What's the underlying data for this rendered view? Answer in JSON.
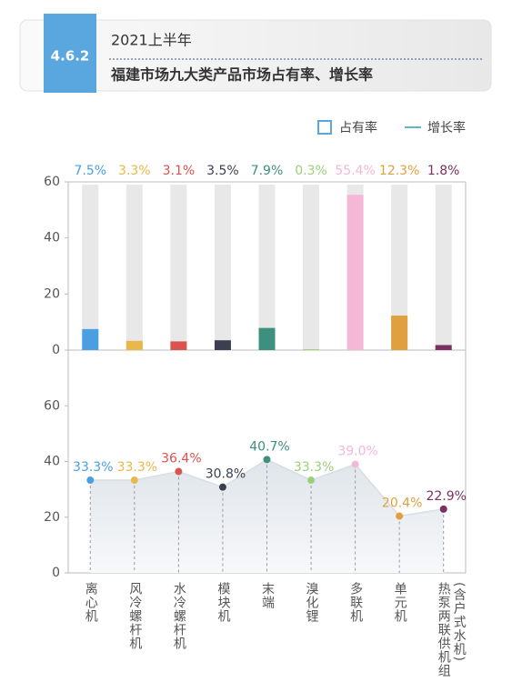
{
  "header": {
    "section": "4.6.2",
    "title": "2021上半年",
    "subtitle": "福建市场九大类产品市场占有率、增长率"
  },
  "chart_data": [
    {
      "type": "bar",
      "series": [
        {
          "name": "占有率",
          "color": "#5aa7e0",
          "values": [
            7.5,
            3.3,
            3.1,
            3.5,
            7.9,
            0.3,
            55.4,
            12.3,
            1.8
          ],
          "value_labels": [
            "7.5%",
            "3.3%",
            "3.1%",
            "3.5%",
            "7.9%",
            "0.3%",
            "55.4%",
            "12.3%",
            "1.8%"
          ]
        }
      ],
      "colors": [
        "#4a9fe0",
        "#e8b84a",
        "#d9534f",
        "#3a4050",
        "#3d8f7e",
        "#9ccf7a",
        "#f4b8d6",
        "#e0a040",
        "#7a3060"
      ],
      "ylim": [
        0,
        60
      ],
      "yticks": [
        0,
        20,
        40,
        60
      ]
    },
    {
      "type": "line",
      "categories": [
        "离心机",
        "风冷螺杆机",
        "水冷螺杆机",
        "模块机",
        "末端",
        "溴化锂",
        "多联机",
        "单元机",
        "热泵两联供机组(含户式水机)"
      ],
      "series": [
        {
          "name": "增长率",
          "color": "#5bbcc0",
          "values": [
            33.3,
            33.3,
            36.4,
            30.8,
            40.7,
            33.3,
            39.0,
            20.4,
            22.9
          ],
          "value_labels": [
            "33.3%",
            "33.3%",
            "36.4%",
            "30.8%",
            "40.7%",
            "33.3%",
            "39.0%",
            "20.4%",
            "22.9%"
          ]
        }
      ],
      "colors": [
        "#4a9fe0",
        "#e8b84a",
        "#d9534f",
        "#3a4050",
        "#3d8f7e",
        "#9ccf7a",
        "#f4b8d6",
        "#e0a040",
        "#7a3060"
      ],
      "ylim": [
        0,
        80
      ],
      "yticks": [
        0,
        20,
        40,
        60
      ]
    }
  ]
}
